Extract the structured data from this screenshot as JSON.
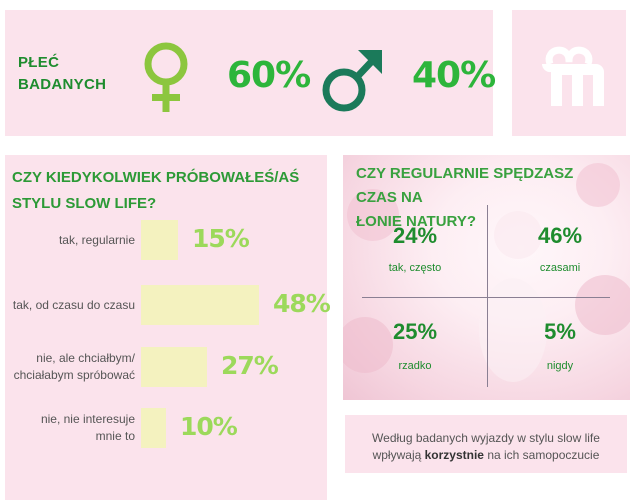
{
  "gender": {
    "label_line1": "PŁEĆ",
    "label_line2": "BADANYCH",
    "female_pct": "60%",
    "male_pct": "40%",
    "female_icon": "female-symbol-icon",
    "male_icon": "male-symbol-icon",
    "female_color": "#8cc63e",
    "male_color": "#1b7a5a"
  },
  "logo": {
    "icon": "brand-logo-icon",
    "color": "#ffffff"
  },
  "slow_life": {
    "title_line1": "CZY KIEDYKOLWIEK PRÓBOWAŁEŚ/AŚ",
    "title_line2": "STYLU SLOW LIFE?"
  },
  "nature": {
    "title_line1": "CZY REGULARNIE SPĘDZASZ CZAS NA",
    "title_line2": "ŁONIE NATURY?",
    "quadrants": [
      {
        "pct": "24%",
        "label": "tak, często"
      },
      {
        "pct": "46%",
        "label": "czasami"
      },
      {
        "pct": "25%",
        "label": "rzadko"
      },
      {
        "pct": "5%",
        "label": "nigdy"
      }
    ]
  },
  "summary": {
    "line1": "Według badanych wyjazdy w stylu slow life",
    "line2_pre": "wpływają ",
    "line2_bold": "korzystnie",
    "line2_post": " na ich samopoczucie"
  },
  "chart_data": {
    "type": "bar",
    "orientation": "horizontal",
    "title": "CZY KIEDYKOLWIEK PRÓBOWAŁEŚ/AŚ STYLU SLOW LIFE?",
    "categories": [
      "tak, regularnie",
      "tak, od czasu do czasu",
      "nie, ale chciałbym/ chciałabym spróbować",
      "nie, nie interesuje mnie to"
    ],
    "category_lines": [
      [
        "tak, regularnie"
      ],
      [
        "tak, od czasu do czasu"
      ],
      [
        "nie, ale chciałbym/",
        "chciałabym spróbować"
      ],
      [
        "nie, nie interesuje",
        "mnie to"
      ]
    ],
    "values": [
      15,
      48,
      27,
      10
    ],
    "value_labels": [
      "15%",
      "48%",
      "27%",
      "10%"
    ],
    "xlim": [
      0,
      48
    ],
    "grid": false,
    "bar_color": "#f4f2bf",
    "value_color": "#9cd95b"
  }
}
